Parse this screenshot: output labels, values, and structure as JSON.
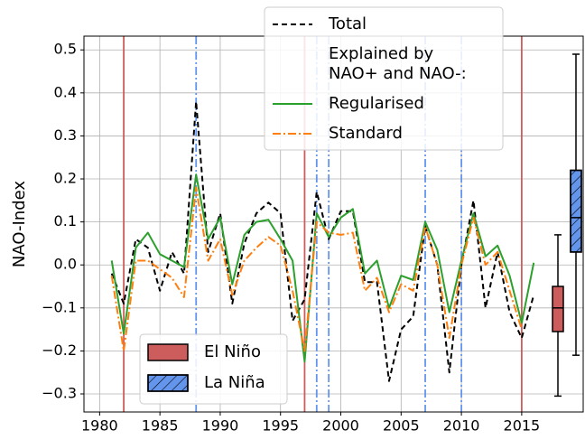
{
  "chart_data": {
    "type": "line",
    "ylabel": "NAO-Index",
    "x": [
      1981,
      1982,
      1983,
      1984,
      1985,
      1986,
      1987,
      1988,
      1989,
      1990,
      1991,
      1992,
      1993,
      1994,
      1995,
      1996,
      1997,
      1998,
      1999,
      2000,
      2001,
      2002,
      2003,
      2004,
      2005,
      2006,
      2007,
      2008,
      2009,
      2010,
      2011,
      2012,
      2013,
      2014,
      2015,
      2016
    ],
    "series": [
      {
        "name": "Total",
        "color": "#000000",
        "dash": "6,4",
        "values": [
          -0.02,
          -0.09,
          0.06,
          0.04,
          -0.06,
          0.03,
          -0.02,
          0.38,
          0.03,
          0.12,
          -0.09,
          0.05,
          0.12,
          0.145,
          0.12,
          -0.13,
          -0.08,
          0.17,
          0.06,
          0.125,
          0.125,
          -0.04,
          -0.04,
          -0.27,
          -0.15,
          -0.12,
          0.09,
          0.0,
          -0.25,
          0.0,
          0.15,
          -0.1,
          0.03,
          -0.11,
          -0.17,
          -0.07
        ]
      },
      {
        "name": "Regularised",
        "color": "#2ca02c",
        "dash": "none",
        "values": [
          0.01,
          -0.16,
          0.04,
          0.075,
          0.025,
          0.01,
          -0.005,
          0.21,
          0.06,
          0.11,
          -0.045,
          0.07,
          0.1,
          0.105,
          0.06,
          0.01,
          -0.225,
          0.12,
          0.065,
          0.11,
          0.13,
          -0.02,
          0.01,
          -0.1,
          -0.025,
          -0.035,
          0.1,
          0.035,
          -0.11,
          0.01,
          0.12,
          0.02,
          0.045,
          -0.025,
          -0.135,
          0.005
        ]
      },
      {
        "name": "Standard",
        "color": "#ff7f0e",
        "dash": "9,3,2,3",
        "values": [
          -0.025,
          -0.2,
          0.01,
          0.01,
          -0.01,
          -0.03,
          -0.075,
          0.18,
          0.01,
          0.06,
          -0.07,
          0.01,
          0.04,
          0.065,
          0.045,
          -0.06,
          -0.2,
          0.1,
          0.075,
          0.07,
          0.075,
          -0.06,
          -0.03,
          -0.11,
          -0.045,
          -0.06,
          0.09,
          0.0,
          -0.17,
          0.0,
          0.11,
          0.0,
          0.03,
          -0.06,
          -0.15,
          null
        ]
      }
    ],
    "legend_heading": "Explained by\nNAO+ and NAO-:",
    "events": [
      {
        "name": "El Niño",
        "color": "#cd5c5c",
        "dash": "none",
        "hatch": false,
        "years": [
          1982,
          1997,
          2015
        ],
        "box": {
          "whislo": -0.305,
          "q1": -0.155,
          "median": -0.1,
          "q3": -0.05,
          "whishi": 0.07
        }
      },
      {
        "name": "La Niña",
        "color": "#6495ed",
        "dash": "9,3,2,3",
        "hatch": true,
        "years": [
          1988,
          1998,
          1999,
          2007,
          2010
        ],
        "box": {
          "whislo": -0.21,
          "q1": 0.03,
          "median": 0.11,
          "q3": 0.22,
          "whishi": 0.49
        }
      }
    ],
    "xlim": [
      1978.7,
      2020.1
    ],
    "ylim": [
      -0.342,
      0.532
    ],
    "xticks": [
      1980,
      1985,
      1990,
      1995,
      2000,
      2005,
      2010,
      2015
    ],
    "yticks": [
      {
        "value": -0.3,
        "label": "−0.3"
      },
      {
        "value": -0.2,
        "label": "−0.2"
      },
      {
        "value": -0.1,
        "label": "−0.1"
      },
      {
        "value": 0,
        "label": "0.0"
      },
      0.1,
      0.2,
      0.3,
      0.4,
      0.5
    ],
    "grid": true
  }
}
